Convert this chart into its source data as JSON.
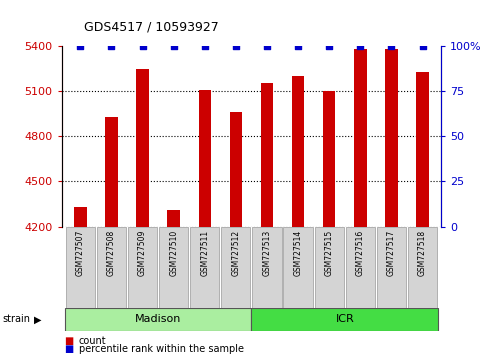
{
  "title": "GDS4517 / 10593927",
  "samples": [
    "GSM727507",
    "GSM727508",
    "GSM727509",
    "GSM727510",
    "GSM727511",
    "GSM727512",
    "GSM727513",
    "GSM727514",
    "GSM727515",
    "GSM727516",
    "GSM727517",
    "GSM727518"
  ],
  "counts": [
    4330,
    4930,
    5250,
    4310,
    5110,
    4960,
    5155,
    5200,
    5100,
    5380,
    5380,
    5230
  ],
  "percentiles": [
    100,
    100,
    100,
    100,
    100,
    100,
    100,
    100,
    100,
    100,
    100,
    100
  ],
  "ylim_left": [
    4200,
    5400
  ],
  "ylim_right": [
    0,
    100
  ],
  "yticks_left": [
    4200,
    4500,
    4800,
    5100,
    5400
  ],
  "yticks_right": [
    0,
    25,
    50,
    75,
    100
  ],
  "ytick_right_labels": [
    "0",
    "25",
    "50",
    "75",
    "100%"
  ],
  "bar_color": "#CC0000",
  "dot_color": "#0000CC",
  "bar_width": 0.4,
  "groups": [
    {
      "label": "Madison",
      "start": 0,
      "end": 6
    },
    {
      "label": "ICR",
      "start": 6,
      "end": 12
    }
  ],
  "group_colors": [
    "#AAEEA0",
    "#44DD44"
  ],
  "left_tick_color": "#CC0000",
  "right_tick_color": "#0000CC",
  "legend_count_color": "#CC0000",
  "legend_pct_color": "#0000CC",
  "bg_color": "#FFFFFF",
  "label_box_color": "#D4D4D4",
  "label_box_edge": "#999999"
}
